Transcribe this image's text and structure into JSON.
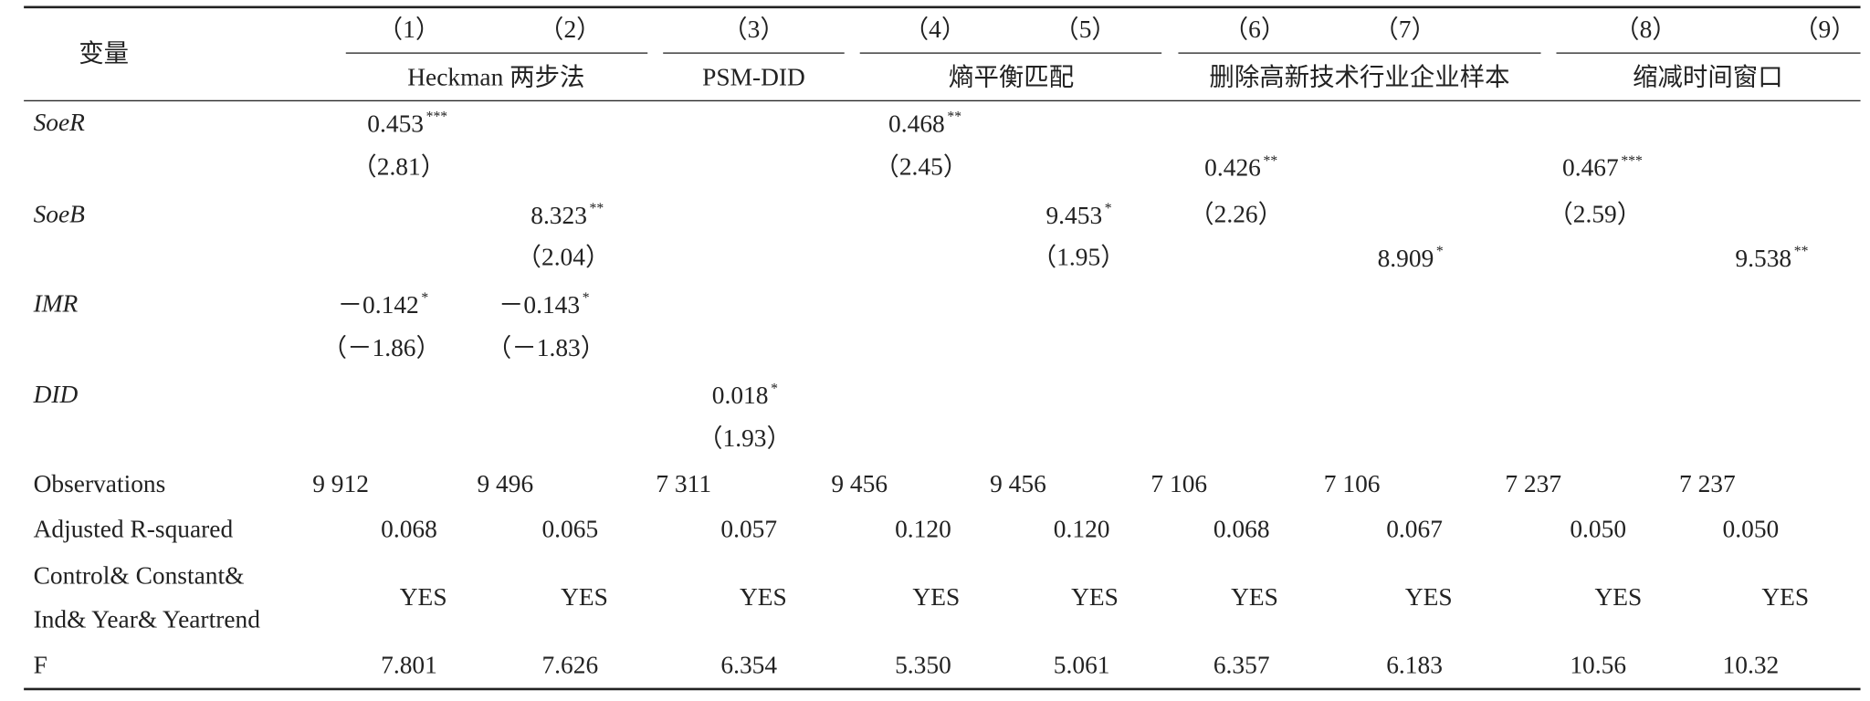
{
  "table": {
    "header": {
      "variable": "变量",
      "columns": [
        "（1）",
        "（2）",
        "（3）",
        "（4）",
        "（5）",
        "（6）",
        "（7）",
        "（8）",
        "（9）"
      ],
      "groups": [
        "Heckman 两步法",
        "PSM-DID",
        "熵平衡匹配",
        "删除高新技术行业企业样本",
        "缩减时间窗口"
      ]
    },
    "rows": [
      {
        "label": "SoeR",
        "cells": [
          {
            "text": "0.453",
            "sup": "***"
          },
          {
            "text": "0.468",
            "sup": "**"
          }
        ]
      },
      {
        "cells": [
          {
            "text": "（2.81）"
          },
          {
            "text": "（2.45）"
          },
          {
            "text": "0.426",
            "sup": "**"
          },
          {
            "text": "0.467",
            "sup": "***"
          }
        ]
      },
      {
        "label": "SoeB",
        "cells": [
          {
            "text": "8.323",
            "sup": "**"
          },
          {
            "text": "9.453",
            "sup": "*"
          },
          {
            "text": "（2.26）"
          },
          {
            "text": "（2.59）"
          }
        ]
      },
      {
        "cells": [
          {
            "text": "（2.04）"
          },
          {
            "text": "（1.95）"
          },
          {
            "text": "8.909",
            "sup": "*"
          },
          {
            "text": "9.538",
            "sup": "**"
          }
        ]
      },
      {
        "label": "IMR",
        "cells": [
          {
            "text": "－0.142",
            "sup": "*"
          },
          {
            "text": "－0.143",
            "sup": "*"
          }
        ]
      },
      {
        "cells": [
          {
            "text": "（－1.86）"
          },
          {
            "text": "（－1.83）"
          }
        ]
      },
      {
        "label": "DID",
        "cells": [
          {
            "text": "0.018",
            "sup": "*"
          }
        ]
      },
      {
        "cells": [
          {
            "text": "（1.93）"
          }
        ]
      },
      {
        "label": "Observations",
        "cells": [
          {
            "text": "9 912"
          },
          {
            "text": "9 496"
          },
          {
            "text": "7 311"
          },
          {
            "text": "9 456"
          },
          {
            "text": "9 456"
          },
          {
            "text": "7 106"
          },
          {
            "text": "7 106"
          },
          {
            "text": "7 237"
          },
          {
            "text": "7 237"
          }
        ]
      },
      {
        "label": "Adjusted R-squared",
        "cells": [
          {
            "text": "0.068"
          },
          {
            "text": "0.065"
          },
          {
            "text": "0.057"
          },
          {
            "text": "0.120"
          },
          {
            "text": "0.120"
          },
          {
            "text": "0.068"
          },
          {
            "text": "0.067"
          },
          {
            "text": "0.050"
          },
          {
            "text": "0.050"
          }
        ]
      },
      {
        "label": [
          "Control& Constant&",
          "Ind& Year& Yeartrend"
        ],
        "cells": [
          {
            "text": "YES"
          },
          {
            "text": "YES"
          },
          {
            "text": "YES"
          },
          {
            "text": "YES"
          },
          {
            "text": "YES"
          },
          {
            "text": "YES"
          },
          {
            "text": "YES"
          },
          {
            "text": "YES"
          },
          {
            "text": "YES"
          }
        ]
      },
      {
        "label": "F",
        "cells": [
          {
            "text": "7.801"
          },
          {
            "text": "7.626"
          },
          {
            "text": "6.354"
          },
          {
            "text": "5.350"
          },
          {
            "text": "5.061"
          },
          {
            "text": "6.357"
          },
          {
            "text": "6.183"
          },
          {
            "text": "10.56"
          },
          {
            "text": "10.32"
          }
        ]
      }
    ]
  }
}
